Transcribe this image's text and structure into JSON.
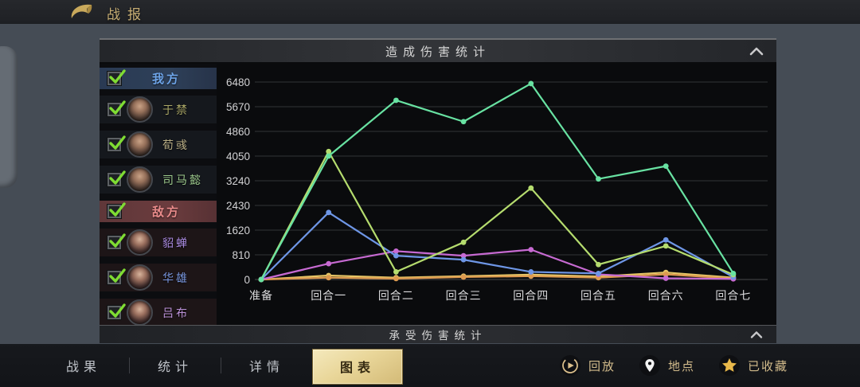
{
  "top_bar": {
    "title": "战报"
  },
  "sections": {
    "damage_dealt_title": "造成伤害统计",
    "damage_taken_title": "承受伤害统计"
  },
  "sidebar": {
    "groups": [
      {
        "type": "ally",
        "label": "我方",
        "label_color": "#6da4e8",
        "checked": true,
        "members": [
          {
            "name": "于禁",
            "name_color": "#a9a666",
            "checked": true
          },
          {
            "name": "荀彧",
            "name_color": "#b5aa82",
            "checked": true
          },
          {
            "name": "司马懿",
            "name_color": "#9cc98c",
            "checked": true
          }
        ]
      },
      {
        "type": "enemy",
        "label": "敌方",
        "label_color": "#e88a8a",
        "checked": true,
        "members": [
          {
            "name": "貂蝉",
            "name_color": "#a98ae0",
            "checked": true
          },
          {
            "name": "华雄",
            "name_color": "#7795dd",
            "checked": true
          },
          {
            "name": "吕布",
            "name_color": "#bb92d8",
            "checked": true
          }
        ]
      }
    ]
  },
  "chart_data": {
    "type": "line",
    "title": "造成伤害统计",
    "categories": [
      "准备",
      "回合一",
      "回合二",
      "回合三",
      "回合四",
      "回合五",
      "回合六",
      "回合七"
    ],
    "ylim": [
      0,
      6480
    ],
    "yticks": [
      0,
      810,
      1620,
      2430,
      3240,
      4050,
      4860,
      5670,
      6480
    ],
    "grid": true,
    "legend": "none",
    "series": [
      {
        "name": "荀彧",
        "color": "#e6c566",
        "values": [
          0,
          130,
          60,
          110,
          160,
          100,
          230,
          60
        ]
      },
      {
        "name": "吕布",
        "color": "#dd9a50",
        "values": [
          0,
          60,
          30,
          80,
          110,
          60,
          170,
          30
        ]
      },
      {
        "name": "貂蝉",
        "color": "#c76ad2",
        "values": [
          0,
          520,
          930,
          780,
          980,
          170,
          40,
          20
        ]
      },
      {
        "name": "华雄",
        "color": "#6e96e6",
        "values": [
          0,
          2200,
          780,
          650,
          250,
          200,
          1300,
          80
        ]
      },
      {
        "name": "于禁",
        "color": "#b5dc6e",
        "values": [
          0,
          4200,
          250,
          1220,
          3000,
          490,
          1100,
          160
        ]
      },
      {
        "name": "司马懿",
        "color": "#68e2a2",
        "values": [
          0,
          4050,
          5880,
          5180,
          6430,
          3300,
          3720,
          200
        ]
      }
    ]
  },
  "footer": {
    "tabs": [
      {
        "label": "战果",
        "active": false
      },
      {
        "label": "统计",
        "active": false
      },
      {
        "label": "详情",
        "active": false
      },
      {
        "label": "图表",
        "active": true
      }
    ],
    "actions": [
      {
        "label": "回放",
        "icon": "replay-icon"
      },
      {
        "label": "地点",
        "icon": "location-pin-icon"
      },
      {
        "label": "已收藏",
        "icon": "star-icon"
      }
    ]
  },
  "colors": {
    "check_green": "#7fdc33",
    "gold_accent": "#c7ae74",
    "tab_active_text": "#352a12"
  }
}
